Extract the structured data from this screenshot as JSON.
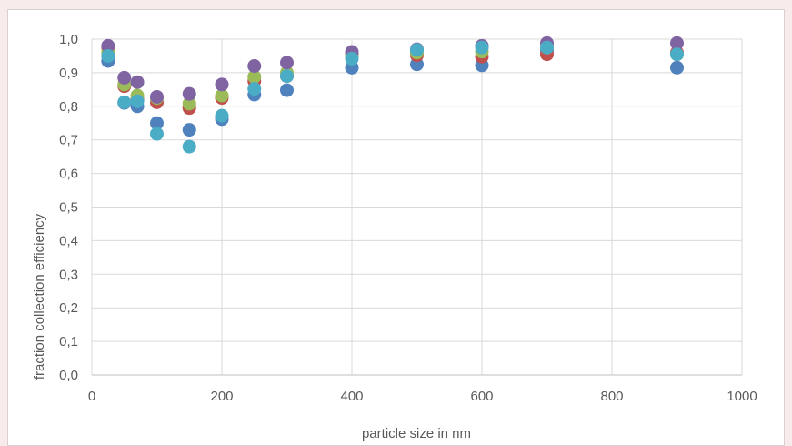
{
  "chart_data": {
    "type": "scatter",
    "title": "",
    "xlabel": "particle size in nm",
    "ylabel": "fraction collection efficiency",
    "xlim": [
      0,
      1000
    ],
    "ylim": [
      0,
      1.0
    ],
    "x_ticks": [
      "0",
      "200",
      "400",
      "600",
      "800",
      "1000"
    ],
    "y_ticks": [
      "0,0",
      "0,1",
      "0,2",
      "0,3",
      "0,4",
      "0,5",
      "0,6",
      "0,7",
      "0,8",
      "0,9",
      "1,0"
    ],
    "grid": true,
    "legend": "none",
    "series": [
      {
        "color": "#4f81bd",
        "x": [
          25,
          50,
          70,
          100,
          150,
          200,
          250,
          300,
          400,
          500,
          600,
          700,
          900
        ],
        "y": [
          0.935,
          0.81,
          0.8,
          0.75,
          0.73,
          0.762,
          0.835,
          0.848,
          0.915,
          0.925,
          0.922,
          0.965,
          0.915
        ]
      },
      {
        "color": "#c0504d",
        "x": [
          25,
          50,
          70,
          100,
          150,
          200,
          250,
          300,
          400,
          500,
          600,
          700,
          900
        ],
        "y": [
          0.975,
          0.86,
          0.82,
          0.812,
          0.795,
          0.825,
          0.875,
          0.89,
          0.955,
          0.952,
          0.948,
          0.955,
          0.96
        ]
      },
      {
        "color": "#9bbb59",
        "x": [
          25,
          50,
          70,
          100,
          150,
          200,
          250,
          300,
          400,
          500,
          600,
          700,
          900
        ],
        "y": [
          0.96,
          0.865,
          0.832,
          0.825,
          0.808,
          0.832,
          0.888,
          0.9,
          0.95,
          0.96,
          0.963,
          0.975,
          0.955
        ]
      },
      {
        "color": "#8064a2",
        "x": [
          25,
          50,
          70,
          100,
          150,
          200,
          250,
          300,
          400,
          500,
          600,
          700,
          900
        ],
        "y": [
          0.98,
          0.885,
          0.872,
          0.828,
          0.837,
          0.865,
          0.92,
          0.93,
          0.962,
          0.97,
          0.98,
          0.988,
          0.988
        ]
      },
      {
        "color": "#4bacc6",
        "x": [
          25,
          50,
          70,
          100,
          150,
          200,
          250,
          300,
          400,
          500,
          600,
          700,
          900
        ],
        "y": [
          0.95,
          0.812,
          0.815,
          0.718,
          0.68,
          0.772,
          0.852,
          0.89,
          0.942,
          0.968,
          0.975,
          0.975,
          0.955
        ]
      }
    ]
  }
}
